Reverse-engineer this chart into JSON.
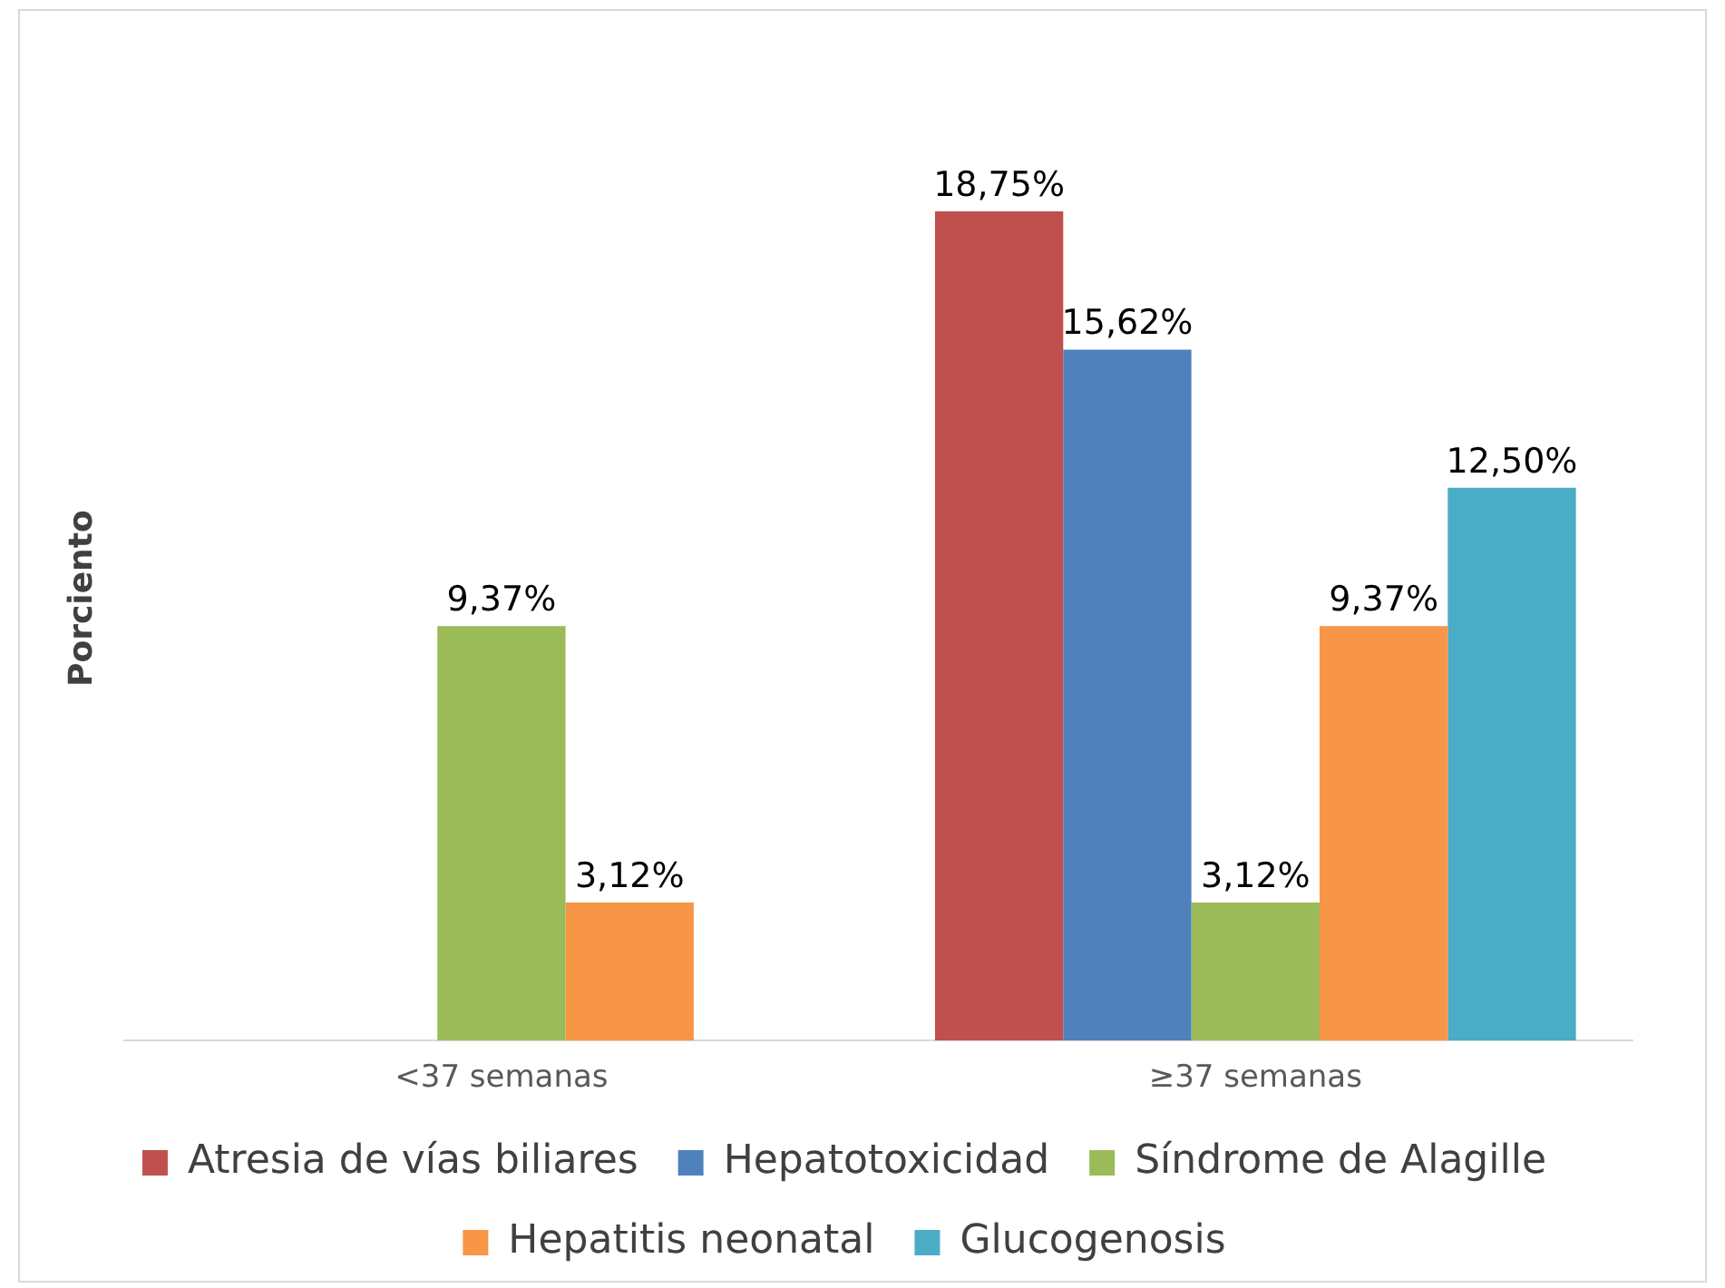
{
  "chart_data": {
    "type": "bar",
    "ylabel": "Porciento",
    "categories": [
      "<37 semanas",
      "≥37 semanas"
    ],
    "series": [
      {
        "name": "Atresia de vías biliares",
        "color": "#c0504d",
        "values": [
          0,
          18.75
        ],
        "value_labels": [
          null,
          "18,75%"
        ]
      },
      {
        "name": "Hepatotoxicidad",
        "color": "#4f81bd",
        "values": [
          0,
          15.62
        ],
        "value_labels": [
          null,
          "15,62%"
        ]
      },
      {
        "name": "Síndrome de Alagille",
        "color": "#9bbb59",
        "values": [
          9.37,
          3.12
        ],
        "value_labels": [
          "9,37%",
          "3,12%"
        ]
      },
      {
        "name": "Hepatitis neonatal",
        "color": "#f79646",
        "values": [
          3.12,
          9.37
        ],
        "value_labels": [
          "3,12%",
          "9,37%"
        ]
      },
      {
        "name": "Glucogenosis",
        "color": "#4bacc6",
        "values": [
          0,
          12.5
        ],
        "value_labels": [
          null,
          "12,50%"
        ]
      }
    ],
    "legend": "bottom",
    "grid": false,
    "tick_labels": "x"
  }
}
